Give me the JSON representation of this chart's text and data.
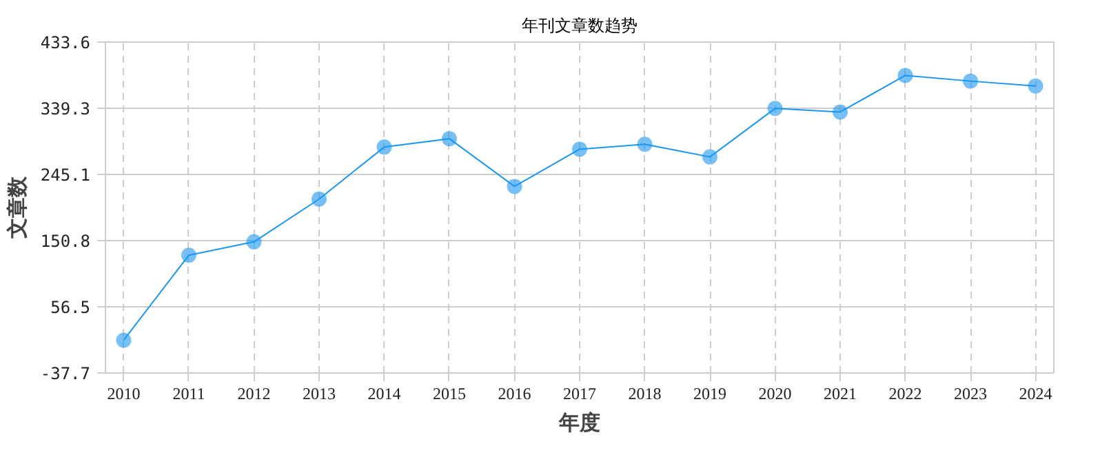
{
  "chart_data": {
    "type": "line",
    "title": "年刊文章数趋势",
    "xlabel": "年度",
    "ylabel": "文章数",
    "categories": [
      "2010",
      "2011",
      "2012",
      "2013",
      "2014",
      "2015",
      "2016",
      "2017",
      "2018",
      "2019",
      "2020",
      "2021",
      "2022",
      "2023",
      "2024"
    ],
    "series": [
      {
        "color": "#1a96f0",
        "values": [
          9,
          130,
          149,
          210,
          284,
          296,
          228,
          281,
          288,
          270,
          339,
          334,
          386,
          378,
          371
        ]
      }
    ],
    "ylim": [
      -37.7,
      433.6
    ],
    "yticks": [
      -37.7,
      56.5,
      150.8,
      245.1,
      339.3,
      433.6
    ],
    "grid": true,
    "marker": "circle",
    "line_style": "solid"
  }
}
